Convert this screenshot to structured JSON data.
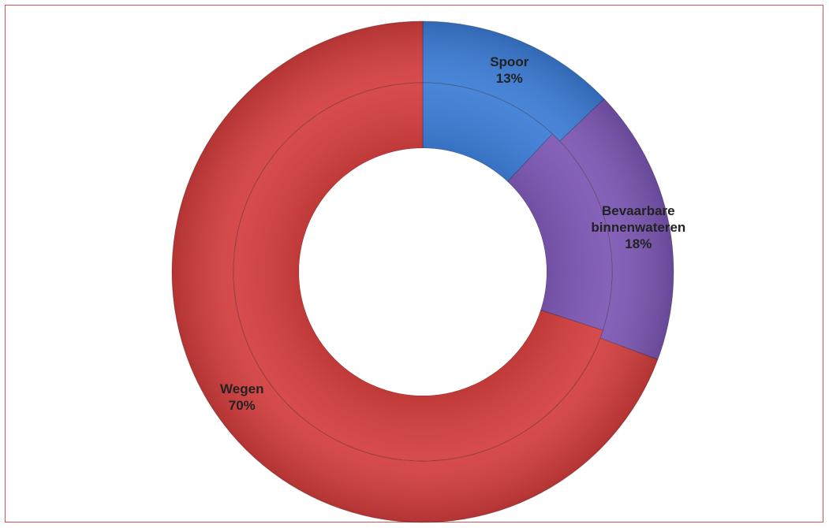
{
  "chart_data": {
    "type": "doughnut",
    "categories": [
      "Spoor",
      "Bevaarbare binnenwateren",
      "Wegen"
    ],
    "colors": [
      "#3a7bd5",
      "#7b55b3",
      "#d33c3c"
    ],
    "series": [
      {
        "values": [
          13,
          18,
          70
        ],
        "value_labels": [
          "13%",
          "18%",
          "70%"
        ]
      },
      {
        "values": [
          12,
          18,
          70
        ]
      }
    ]
  }
}
